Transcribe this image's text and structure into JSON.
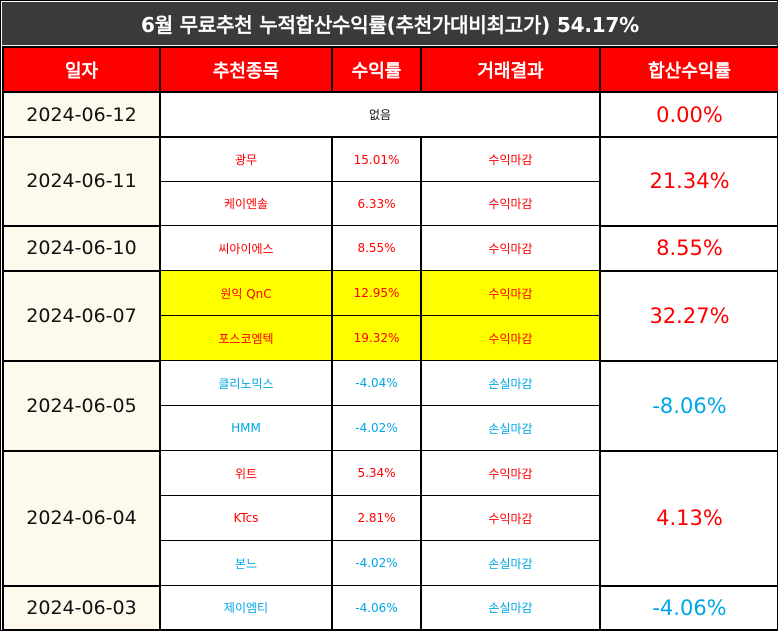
{
  "title": "6월 무료추천 누적합산수익률(추천가대비최고가) 54.17%",
  "headers": [
    "일자",
    "추천종목",
    "수익률",
    "거래결과",
    "합산수익률"
  ],
  "empty_text": "없음",
  "groups": [
    {
      "date": "2024-06-12",
      "total": "0.00%",
      "total_sign": "pos",
      "rows": []
    },
    {
      "date": "2024-06-11",
      "total": "21.34%",
      "total_sign": "pos",
      "rows": [
        {
          "stock": "광무",
          "return": "15.01%",
          "result": "수익마감",
          "sign": "pos",
          "highlight": false
        },
        {
          "stock": "케이엔솔",
          "return": "6.33%",
          "result": "수익마감",
          "sign": "pos",
          "highlight": false
        }
      ]
    },
    {
      "date": "2024-06-10",
      "total": "8.55%",
      "total_sign": "pos",
      "rows": [
        {
          "stock": "씨아이에스",
          "return": "8.55%",
          "result": "수익마감",
          "sign": "pos",
          "highlight": false
        }
      ]
    },
    {
      "date": "2024-06-07",
      "total": "32.27%",
      "total_sign": "pos",
      "rows": [
        {
          "stock": "원익 QnC",
          "return": "12.95%",
          "result": "수익마감",
          "sign": "pos",
          "highlight": true
        },
        {
          "stock": "포스코엠텍",
          "return": "19.32%",
          "result": "수익마감",
          "sign": "pos",
          "highlight": true
        }
      ]
    },
    {
      "date": "2024-06-05",
      "total": "-8.06%",
      "total_sign": "neg",
      "rows": [
        {
          "stock": "클리노믹스",
          "return": "-4.04%",
          "result": "손실마감",
          "sign": "neg",
          "highlight": false
        },
        {
          "stock": "HMM",
          "return": "-4.02%",
          "result": "손실마감",
          "sign": "neg",
          "highlight": false
        }
      ]
    },
    {
      "date": "2024-06-04",
      "total": "4.13%",
      "total_sign": "pos",
      "rows": [
        {
          "stock": "위트",
          "return": "5.34%",
          "result": "수익마감",
          "sign": "pos",
          "highlight": false
        },
        {
          "stock": "KTcs",
          "return": "2.81%",
          "result": "수익마감",
          "sign": "pos",
          "highlight": false
        },
        {
          "stock": "본느",
          "return": "-4.02%",
          "result": "손실마감",
          "sign": "neg",
          "highlight": false
        }
      ]
    },
    {
      "date": "2024-06-03",
      "total": "-4.06%",
      "total_sign": "neg",
      "rows": [
        {
          "stock": "제이엠티",
          "return": "-4.06%",
          "result": "손실마감",
          "sign": "neg",
          "highlight": false
        }
      ]
    }
  ]
}
